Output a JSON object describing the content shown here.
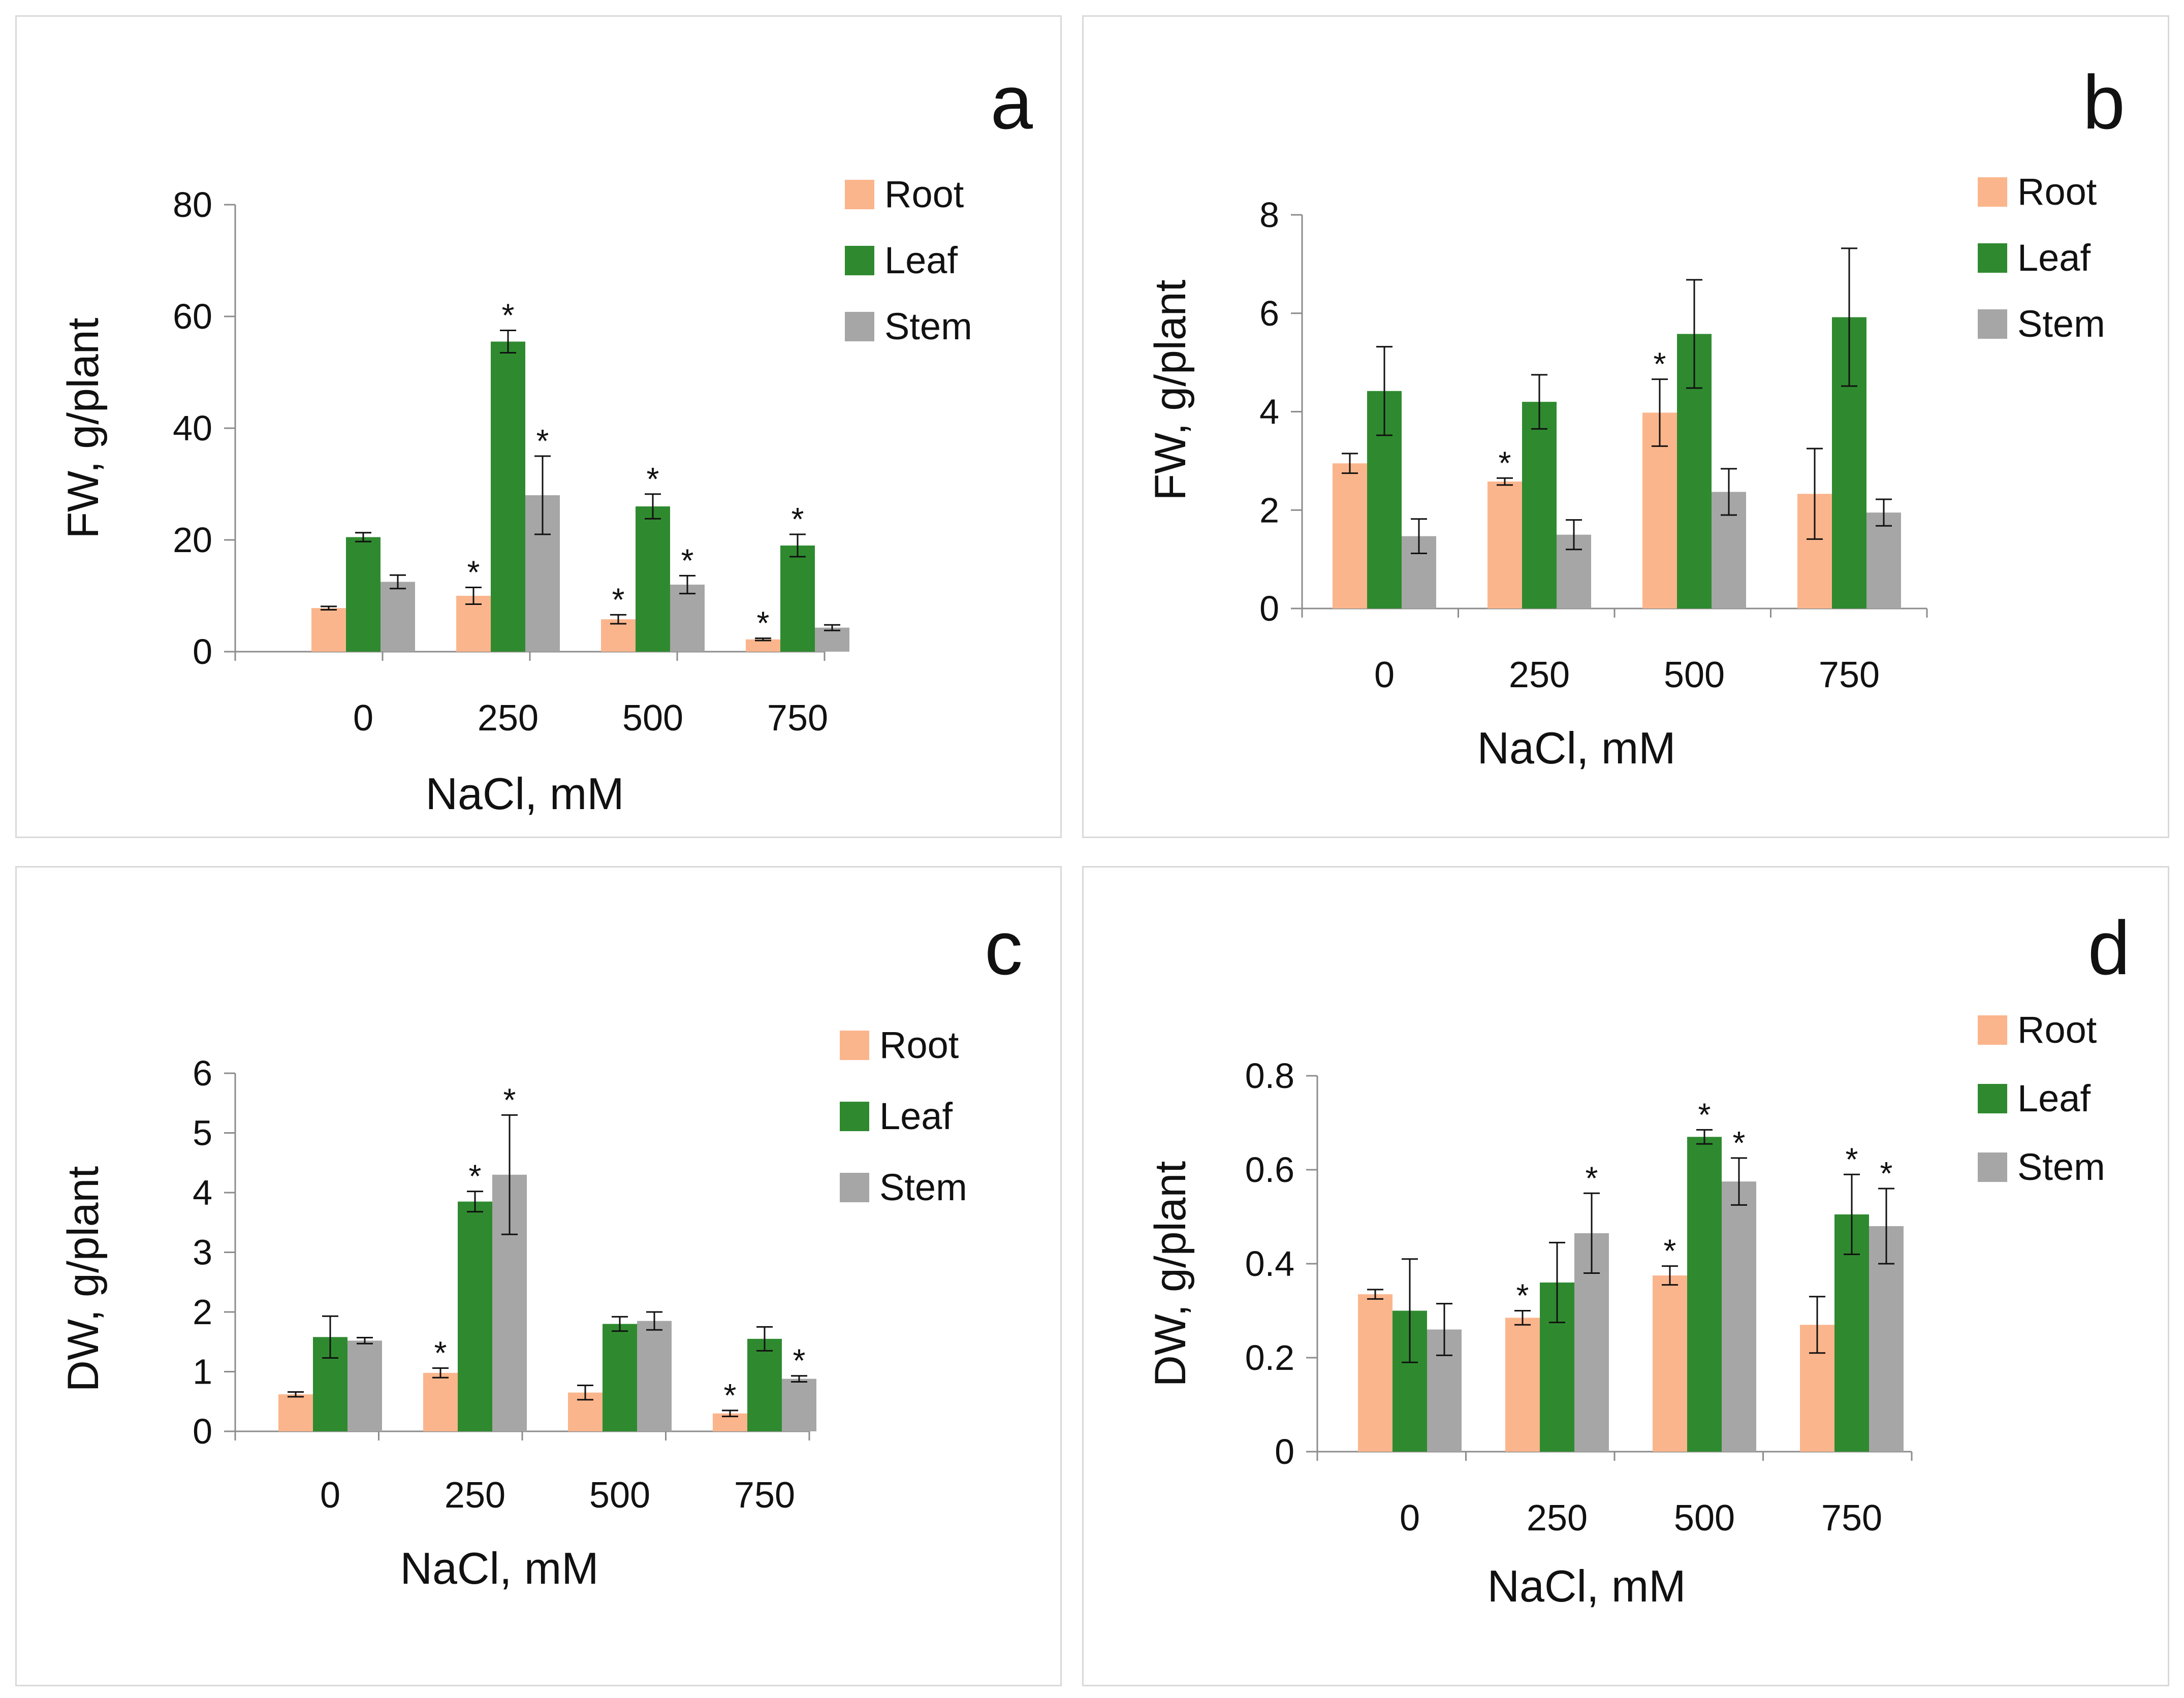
{
  "colors": {
    "root": "#fbb58c",
    "leaf": "#2f8a2f",
    "stem": "#a6a6a6",
    "axis": "#8c8c8c",
    "text": "#111111"
  },
  "legend": [
    "Root",
    "Leaf",
    "Stem"
  ],
  "chart_data": [
    {
      "id": "a",
      "type": "bar",
      "panel_label": "a",
      "categories": [
        "0",
        "250",
        "500",
        "750"
      ],
      "xlabel": "NaCl, mM",
      "ylabel": "FW, g/plant",
      "ylim": [
        0,
        80
      ],
      "yticks": [
        0,
        20,
        40,
        60,
        80
      ],
      "series": [
        {
          "name": "Root",
          "values": [
            7.8,
            10.0,
            5.8,
            2.2
          ],
          "errors": [
            0.3,
            1.5,
            0.8,
            0.2
          ],
          "sig": [
            false,
            true,
            true,
            true
          ]
        },
        {
          "name": "Leaf",
          "values": [
            20.5,
            55.5,
            26.0,
            19.0
          ],
          "errors": [
            0.8,
            2.0,
            2.2,
            2.0
          ],
          "sig": [
            false,
            true,
            true,
            true
          ]
        },
        {
          "name": "Stem",
          "values": [
            12.5,
            28.0,
            12.0,
            4.3
          ],
          "errors": [
            1.2,
            7.0,
            1.6,
            0.5
          ],
          "sig": [
            false,
            true,
            true,
            false
          ]
        }
      ]
    },
    {
      "id": "b",
      "type": "bar",
      "panel_label": "b",
      "categories": [
        "0",
        "250",
        "500",
        "750"
      ],
      "xlabel": "NaCl, mM",
      "ylabel": "FW, g/plant",
      "ylim": [
        0,
        8
      ],
      "yticks": [
        0,
        2,
        4,
        6,
        8
      ],
      "series": [
        {
          "name": "Root",
          "values": [
            2.95,
            2.58,
            3.98,
            2.33
          ],
          "errors": [
            0.2,
            0.07,
            0.68,
            0.92
          ],
          "sig": [
            false,
            true,
            true,
            false
          ]
        },
        {
          "name": "Leaf",
          "values": [
            4.42,
            4.2,
            5.58,
            5.92
          ],
          "errors": [
            0.9,
            0.55,
            1.1,
            1.4
          ],
          "sig": [
            false,
            false,
            false,
            false
          ]
        },
        {
          "name": "Stem",
          "values": [
            1.47,
            1.5,
            2.37,
            1.95
          ],
          "errors": [
            0.35,
            0.3,
            0.47,
            0.27
          ],
          "sig": [
            false,
            false,
            false,
            false
          ]
        }
      ]
    },
    {
      "id": "c",
      "type": "bar",
      "panel_label": "c",
      "categories": [
        "0",
        "250",
        "500",
        "750"
      ],
      "xlabel": "NaCl, mM",
      "ylabel": "DW, g/plant",
      "ylim": [
        0,
        6
      ],
      "yticks": [
        0,
        1,
        2,
        3,
        4,
        5,
        6
      ],
      "series": [
        {
          "name": "Root",
          "values": [
            0.62,
            0.98,
            0.65,
            0.3
          ],
          "errors": [
            0.04,
            0.08,
            0.12,
            0.05
          ],
          "sig": [
            false,
            true,
            false,
            true
          ]
        },
        {
          "name": "Leaf",
          "values": [
            1.58,
            3.85,
            1.8,
            1.55
          ],
          "errors": [
            0.35,
            0.17,
            0.12,
            0.2
          ],
          "sig": [
            false,
            true,
            false,
            false
          ]
        },
        {
          "name": "Stem",
          "values": [
            1.52,
            4.3,
            1.85,
            0.88
          ],
          "errors": [
            0.05,
            1.0,
            0.15,
            0.05
          ],
          "sig": [
            false,
            true,
            false,
            true
          ]
        }
      ]
    },
    {
      "id": "d",
      "type": "bar",
      "panel_label": "d",
      "categories": [
        "0",
        "250",
        "500",
        "750"
      ],
      "xlabel": "NaCl, mM",
      "ylabel": "DW, g/plant",
      "ylim": [
        0,
        0.8
      ],
      "yticks": [
        0,
        0.2,
        0.4,
        0.6,
        0.8
      ],
      "series": [
        {
          "name": "Root",
          "values": [
            0.335,
            0.285,
            0.375,
            0.27
          ],
          "errors": [
            0.01,
            0.015,
            0.02,
            0.06
          ],
          "sig": [
            false,
            true,
            true,
            false
          ]
        },
        {
          "name": "Leaf",
          "values": [
            0.3,
            0.36,
            0.67,
            0.505
          ],
          "errors": [
            0.11,
            0.085,
            0.015,
            0.085
          ],
          "sig": [
            false,
            false,
            true,
            true
          ]
        },
        {
          "name": "Stem",
          "values": [
            0.26,
            0.465,
            0.575,
            0.48
          ],
          "errors": [
            0.055,
            0.085,
            0.05,
            0.08
          ],
          "sig": [
            false,
            true,
            true,
            true
          ]
        }
      ]
    }
  ]
}
